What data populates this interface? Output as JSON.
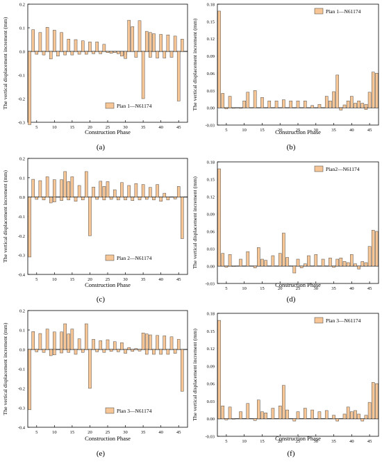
{
  "figure": {
    "panel_labels": [
      "(a)",
      "(b)",
      "(c)",
      "(d)",
      "(e)",
      "(f)"
    ],
    "colors": {
      "bar_fill": "#F7C696",
      "bar_stroke": "#3a3a3a",
      "axis": "#000000",
      "background": "#ffffff"
    }
  },
  "chart_data": [
    {
      "type": "bar",
      "xlabel": "",
      "ylabel": "The vertical displacement increment (mm)",
      "ylim": [
        -0.3,
        0.2
      ],
      "yticks": [
        -0.3,
        -0.2,
        -0.1,
        0.0,
        0.1,
        0.2
      ],
      "xlim": [
        2.5,
        47.5
      ],
      "xticks": [
        5,
        10,
        15,
        20,
        25,
        30,
        35,
        40,
        45
      ],
      "legend": "Plan 1—N61174",
      "legend_position": "lower-right",
      "zero_line": true,
      "positive": [
        [
          4,
          0.092
        ],
        [
          6,
          0.08
        ],
        [
          8,
          0.102
        ],
        [
          10,
          0.09
        ],
        [
          12,
          0.08
        ],
        [
          14,
          0.052
        ],
        [
          16,
          0.05
        ],
        [
          18,
          0.045
        ],
        [
          20,
          0.04
        ],
        [
          22,
          0.04
        ],
        [
          24,
          0.03
        ],
        [
          26,
          -0.008
        ],
        [
          28,
          -0.01
        ],
        [
          30,
          -0.015
        ],
        [
          31,
          0.132
        ],
        [
          32,
          0.105
        ],
        [
          34,
          0.13
        ],
        [
          36,
          0.085
        ],
        [
          37,
          0.08
        ],
        [
          38,
          0.075
        ],
        [
          40,
          0.072
        ],
        [
          42,
          0.07
        ],
        [
          44,
          0.065
        ],
        [
          46,
          0.052
        ]
      ],
      "negative": [
        [
          3,
          -0.31
        ],
        [
          5,
          -0.012
        ],
        [
          7,
          -0.015
        ],
        [
          9,
          -0.032
        ],
        [
          11,
          -0.02
        ],
        [
          13,
          -0.015
        ],
        [
          15,
          -0.015
        ],
        [
          17,
          -0.012
        ],
        [
          19,
          -0.012
        ],
        [
          21,
          -0.01
        ],
        [
          23,
          -0.01
        ],
        [
          25,
          -0.005
        ],
        [
          27,
          -0.005
        ],
        [
          29,
          -0.02
        ],
        [
          30,
          -0.03
        ],
        [
          33,
          -0.025
        ],
        [
          35,
          -0.2
        ],
        [
          37,
          -0.025
        ],
        [
          39,
          -0.028
        ],
        [
          41,
          -0.028
        ],
        [
          43,
          -0.025
        ],
        [
          45,
          -0.21
        ]
      ]
    },
    {
      "type": "bar",
      "xlabel": "",
      "ylabel": "The vertical displacement increment (mm)",
      "ylim": [
        -0.03,
        0.18
      ],
      "yticks": [
        -0.03,
        0.0,
        0.03,
        0.06,
        0.09,
        0.12,
        0.15,
        0.18
      ],
      "xlim": [
        2.5,
        47.5
      ],
      "xticks": [
        5,
        10,
        15,
        20,
        25,
        30,
        35,
        40,
        45
      ],
      "legend": "Plan 1—N61174",
      "legend_position": "top-right",
      "zero_line": true,
      "positive": [
        [
          3,
          0.168
        ],
        [
          4,
          0.025
        ],
        [
          6,
          0.02
        ],
        [
          10,
          0.012
        ],
        [
          11,
          0.027
        ],
        [
          13,
          0.03
        ],
        [
          15,
          0.018
        ],
        [
          17,
          0.012
        ],
        [
          19,
          0.012
        ],
        [
          21,
          0.014
        ],
        [
          23,
          0.012
        ],
        [
          25,
          0.012
        ],
        [
          27,
          0.012
        ],
        [
          29,
          0.004
        ],
        [
          31,
          0.006
        ],
        [
          33,
          0.02
        ],
        [
          34,
          0.012
        ],
        [
          35,
          0.028
        ],
        [
          36,
          0.057
        ],
        [
          38,
          0.005
        ],
        [
          39,
          0.012
        ],
        [
          40,
          0.02
        ],
        [
          41,
          0.008
        ],
        [
          42,
          0.012
        ],
        [
          43,
          0.008
        ],
        [
          44,
          0.006
        ],
        [
          45,
          0.027
        ],
        [
          46,
          0.062
        ],
        [
          47,
          0.06
        ]
      ],
      "negative": [
        [
          5,
          -0.002
        ],
        [
          7,
          -0.001
        ],
        [
          9,
          -0.001
        ],
        [
          37,
          -0.004
        ],
        [
          44,
          -0.003
        ]
      ]
    },
    {
      "type": "bar",
      "xlabel": "",
      "ylabel": "The vertical displacement increment (mm)",
      "ylim": [
        -0.4,
        0.2
      ],
      "yticks": [
        -0.4,
        -0.3,
        -0.2,
        -0.1,
        0.0,
        0.1,
        0.2
      ],
      "xlim": [
        2.5,
        47.5
      ],
      "xticks": [
        5,
        10,
        15,
        20,
        25,
        30,
        35,
        40,
        45
      ],
      "legend": "Plan 2—N61174",
      "legend_position": "lower-right",
      "zero_line": true,
      "positive": [
        [
          4,
          0.092
        ],
        [
          6,
          0.085
        ],
        [
          8,
          0.105
        ],
        [
          10,
          0.09
        ],
        [
          12,
          0.09
        ],
        [
          13,
          0.132
        ],
        [
          14,
          0.08
        ],
        [
          15,
          0.105
        ],
        [
          17,
          0.06
        ],
        [
          19,
          0.132
        ],
        [
          21,
          0.052
        ],
        [
          23,
          0.082
        ],
        [
          24,
          0.055
        ],
        [
          25,
          0.08
        ],
        [
          27,
          0.038
        ],
        [
          29,
          0.075
        ],
        [
          31,
          0.06
        ],
        [
          33,
          0.07
        ],
        [
          35,
          0.065
        ],
        [
          37,
          0.05
        ],
        [
          39,
          0.065
        ],
        [
          41,
          0.02
        ],
        [
          45,
          0.055
        ]
      ],
      "negative": [
        [
          3,
          -0.31
        ],
        [
          5,
          -0.012
        ],
        [
          7,
          -0.015
        ],
        [
          9,
          -0.03
        ],
        [
          10,
          -0.025
        ],
        [
          12,
          -0.018
        ],
        [
          14,
          -0.015
        ],
        [
          16,
          -0.022
        ],
        [
          18,
          -0.015
        ],
        [
          20,
          -0.2
        ],
        [
          22,
          -0.012
        ],
        [
          24,
          -0.015
        ],
        [
          26,
          -0.012
        ],
        [
          28,
          -0.015
        ],
        [
          30,
          -0.015
        ],
        [
          32,
          -0.018
        ],
        [
          34,
          -0.015
        ],
        [
          36,
          -0.012
        ],
        [
          38,
          -0.015
        ],
        [
          40,
          -0.022
        ],
        [
          42,
          -0.015
        ],
        [
          44,
          -0.01
        ],
        [
          46,
          -0.215
        ]
      ]
    },
    {
      "type": "bar",
      "xlabel": "",
      "ylabel": "The vertical displacement increment (mm)",
      "ylim": [
        -0.03,
        0.18
      ],
      "yticks": [
        -0.03,
        0.0,
        0.03,
        0.06,
        0.09,
        0.12,
        0.15,
        0.18
      ],
      "xlim": [
        2.5,
        47.5
      ],
      "xticks": [
        5,
        10,
        15,
        20,
        25,
        30,
        35,
        40,
        45
      ],
      "legend": "Plan2—N61174",
      "legend_position": "top-right",
      "zero_line": true,
      "positive": [
        [
          3,
          0.168
        ],
        [
          4,
          0.022
        ],
        [
          6,
          0.02
        ],
        [
          9,
          0.012
        ],
        [
          11,
          0.025
        ],
        [
          14,
          0.032
        ],
        [
          15,
          0.012
        ],
        [
          16,
          0.01
        ],
        [
          18,
          0.018
        ],
        [
          20,
          0.022
        ],
        [
          21,
          0.057
        ],
        [
          22,
          0.015
        ],
        [
          25,
          0.012
        ],
        [
          27,
          0.004
        ],
        [
          28,
          0.018
        ],
        [
          30,
          0.02
        ],
        [
          32,
          0.012
        ],
        [
          34,
          0.014
        ],
        [
          36,
          0.012
        ],
        [
          37,
          0.014
        ],
        [
          38,
          0.008
        ],
        [
          39,
          0.006
        ],
        [
          40,
          0.02
        ],
        [
          41,
          0.004
        ],
        [
          43,
          0.008
        ],
        [
          44,
          0.006
        ],
        [
          45,
          0.034
        ],
        [
          46,
          0.062
        ],
        [
          47,
          0.06
        ]
      ],
      "negative": [
        [
          5,
          -0.002
        ],
        [
          7,
          -0.001
        ],
        [
          13,
          -0.003
        ],
        [
          24,
          -0.012
        ],
        [
          26,
          -0.003
        ],
        [
          35,
          -0.002
        ],
        [
          42,
          -0.005
        ]
      ]
    },
    {
      "type": "bar",
      "xlabel": "",
      "ylabel": "The vertical displacement increment (mm)",
      "ylim": [
        -0.4,
        0.2
      ],
      "yticks": [
        -0.4,
        -0.3,
        -0.2,
        -0.1,
        0.0,
        0.1,
        0.2
      ],
      "xlim": [
        2.5,
        47.5
      ],
      "xticks": [
        5,
        10,
        15,
        20,
        25,
        30,
        35,
        40,
        45
      ],
      "legend": "Plan 3—N61174",
      "legend_position": "lower-right",
      "zero_line": true,
      "positive": [
        [
          4,
          0.092
        ],
        [
          6,
          0.082
        ],
        [
          8,
          0.105
        ],
        [
          10,
          0.09
        ],
        [
          12,
          0.09
        ],
        [
          13,
          0.132
        ],
        [
          14,
          0.08
        ],
        [
          15,
          0.105
        ],
        [
          17,
          0.055
        ],
        [
          19,
          0.132
        ],
        [
          21,
          0.052
        ],
        [
          23,
          0.045
        ],
        [
          25,
          0.05
        ],
        [
          27,
          0.04
        ],
        [
          29,
          0.035
        ],
        [
          31,
          0.01
        ],
        [
          33,
          0.005
        ],
        [
          35,
          0.085
        ],
        [
          36,
          0.08
        ],
        [
          37,
          0.075
        ],
        [
          39,
          0.072
        ],
        [
          41,
          0.07
        ],
        [
          43,
          0.065
        ],
        [
          45,
          0.052
        ]
      ],
      "negative": [
        [
          3,
          -0.31
        ],
        [
          5,
          -0.012
        ],
        [
          7,
          -0.015
        ],
        [
          9,
          -0.032
        ],
        [
          10,
          -0.028
        ],
        [
          12,
          -0.018
        ],
        [
          14,
          -0.015
        ],
        [
          16,
          -0.025
        ],
        [
          18,
          -0.015
        ],
        [
          20,
          -0.2
        ],
        [
          22,
          -0.012
        ],
        [
          24,
          -0.015
        ],
        [
          26,
          -0.01
        ],
        [
          28,
          -0.012
        ],
        [
          30,
          -0.02
        ],
        [
          32,
          -0.01
        ],
        [
          34,
          -0.008
        ],
        [
          36,
          -0.025
        ],
        [
          38,
          -0.025
        ],
        [
          40,
          -0.025
        ],
        [
          42,
          -0.025
        ],
        [
          44,
          -0.02
        ],
        [
          46,
          -0.215
        ]
      ]
    },
    {
      "type": "bar",
      "xlabel": "",
      "ylabel": "The vertical displacement increment (mm)",
      "ylim": [
        -0.03,
        0.18
      ],
      "yticks": [
        -0.03,
        0.0,
        0.03,
        0.06,
        0.09,
        0.12,
        0.15,
        0.18
      ],
      "xlim": [
        2.5,
        47.5
      ],
      "xticks": [
        5,
        10,
        15,
        20,
        25,
        30,
        35,
        40,
        45
      ],
      "legend": "Plan 3—N61174",
      "legend_position": "top-right",
      "zero_line": true,
      "positive": [
        [
          3,
          0.168
        ],
        [
          4,
          0.022
        ],
        [
          6,
          0.02
        ],
        [
          9,
          0.012
        ],
        [
          11,
          0.026
        ],
        [
          14,
          0.032
        ],
        [
          15,
          0.012
        ],
        [
          16,
          0.01
        ],
        [
          18,
          0.018
        ],
        [
          20,
          0.022
        ],
        [
          21,
          0.057
        ],
        [
          22,
          0.015
        ],
        [
          25,
          0.012
        ],
        [
          27,
          0.018
        ],
        [
          29,
          0.015
        ],
        [
          31,
          0.012
        ],
        [
          33,
          0.014
        ],
        [
          35,
          0.006
        ],
        [
          38,
          0.008
        ],
        [
          39,
          0.02
        ],
        [
          40,
          0.012
        ],
        [
          41,
          0.014
        ],
        [
          42,
          0.008
        ],
        [
          44,
          0.006
        ],
        [
          45,
          0.028
        ],
        [
          46,
          0.062
        ],
        [
          47,
          0.06
        ]
      ],
      "negative": [
        [
          5,
          -0.002
        ],
        [
          7,
          -0.001
        ],
        [
          13,
          -0.003
        ],
        [
          24,
          -0.004
        ],
        [
          36,
          -0.004
        ],
        [
          43,
          -0.004
        ]
      ]
    }
  ],
  "shared": {
    "xlabel": "Construction  Phase"
  }
}
